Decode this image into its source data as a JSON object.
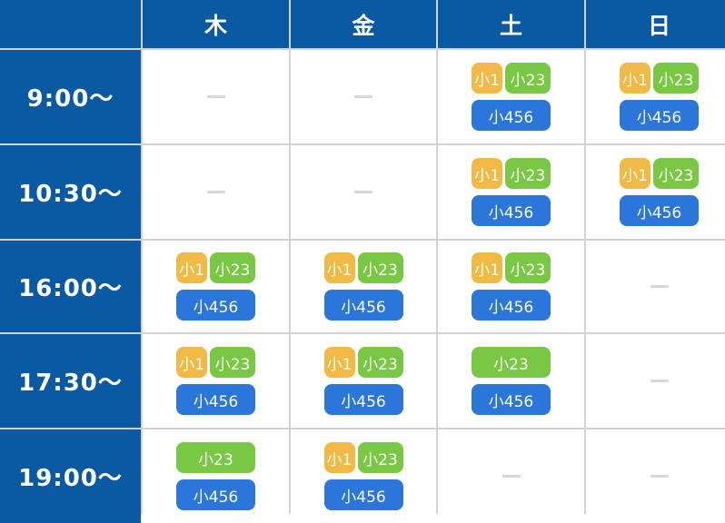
{
  "header": {
    "corner": "",
    "days": [
      "木",
      "金",
      "土",
      "日"
    ]
  },
  "labels": {
    "g1": "小1",
    "g23": "小23",
    "g456": "小456"
  },
  "colors": {
    "header_bg": "#0a59a3",
    "g1": "#f0ba45",
    "g23": "#79c843",
    "g456": "#2a76da"
  },
  "rows": [
    {
      "time": "9:00〜",
      "cells": [
        "none",
        "none",
        "all",
        "all"
      ]
    },
    {
      "time": "10:30〜",
      "cells": [
        "none",
        "none",
        "all",
        "all"
      ]
    },
    {
      "time": "16:00〜",
      "cells": [
        "all",
        "all",
        "all",
        "none"
      ]
    },
    {
      "time": "17:30〜",
      "cells": [
        "all",
        "all",
        "23_456",
        "none"
      ]
    },
    {
      "time": "19:00〜",
      "cells": [
        "23_456",
        "all",
        "none",
        "none"
      ]
    }
  ]
}
